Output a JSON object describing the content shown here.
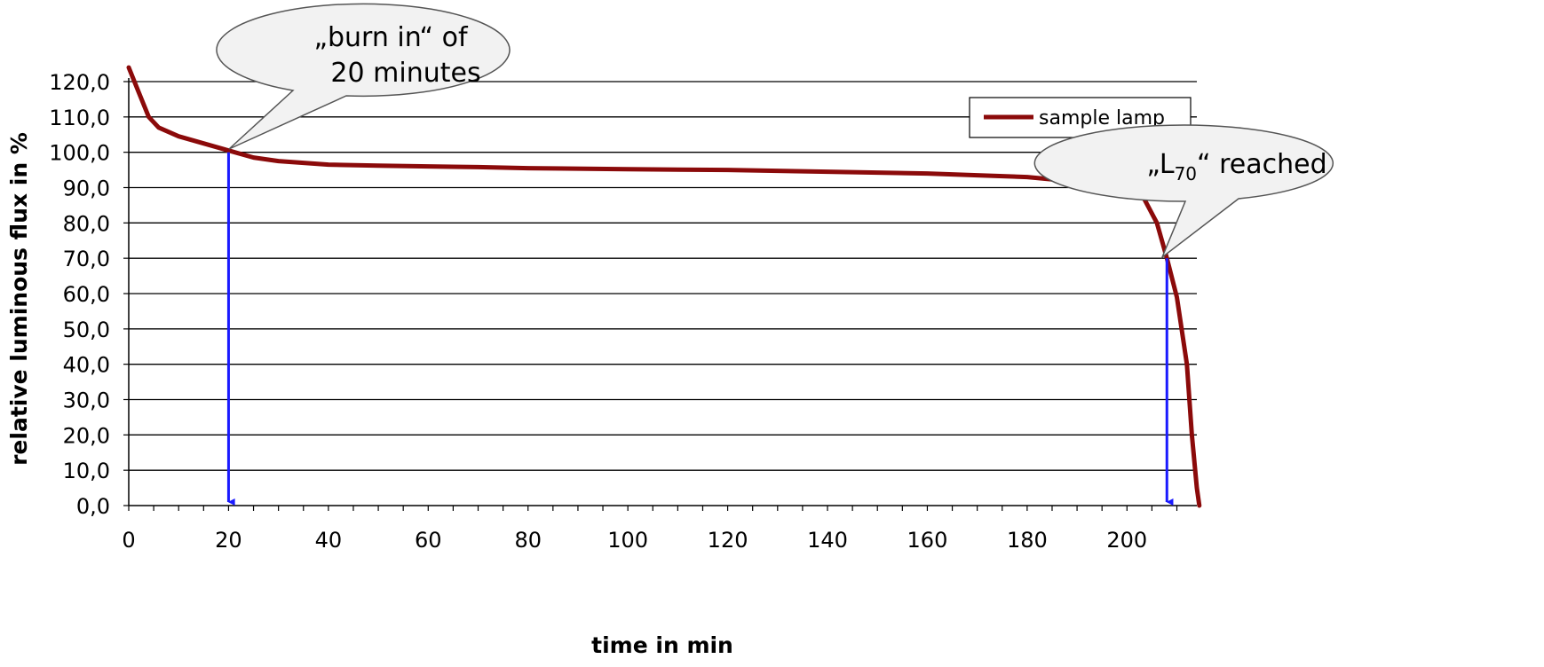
{
  "chart_data": {
    "type": "line",
    "title": "",
    "xlabel": "time in min",
    "ylabel": "relative luminous flux in %",
    "xlim": [
      0,
      214
    ],
    "ylim": [
      0,
      120
    ],
    "grid": "horizontal",
    "legend_position": "top-right",
    "x_ticks": [
      {
        "value": 0,
        "label": "0"
      },
      {
        "value": 20,
        "label": "20"
      },
      {
        "value": 40,
        "label": "40"
      },
      {
        "value": 60,
        "label": "60"
      },
      {
        "value": 80,
        "label": "80"
      },
      {
        "value": 100,
        "label": "100"
      },
      {
        "value": 120,
        "label": "120"
      },
      {
        "value": 140,
        "label": "140"
      },
      {
        "value": 160,
        "label": "160"
      },
      {
        "value": 180,
        "label": "180"
      },
      {
        "value": 200,
        "label": "200"
      }
    ],
    "y_ticks": [
      {
        "value": 0,
        "label": "0,0"
      },
      {
        "value": 10,
        "label": "10,0"
      },
      {
        "value": 20,
        "label": "20,0"
      },
      {
        "value": 30,
        "label": "30,0"
      },
      {
        "value": 40,
        "label": "40,0"
      },
      {
        "value": 50,
        "label": "50,0"
      },
      {
        "value": 60,
        "label": "60,0"
      },
      {
        "value": 70,
        "label": "70,0"
      },
      {
        "value": 80,
        "label": "80,0"
      },
      {
        "value": 90,
        "label": "90,0"
      },
      {
        "value": 100,
        "label": "100,0"
      },
      {
        "value": 110,
        "label": "110,0"
      },
      {
        "value": 120,
        "label": "120,0"
      }
    ],
    "series": [
      {
        "name": "sample lamp",
        "color": "#8b0a0a",
        "x": [
          0,
          2,
          4,
          6,
          10,
          15,
          20,
          25,
          30,
          35,
          40,
          50,
          60,
          70,
          80,
          100,
          120,
          140,
          160,
          170,
          180,
          185,
          190,
          195,
          200,
          203,
          206,
          208,
          210,
          212,
          213,
          214,
          214.5
        ],
        "y": [
          124,
          117,
          110,
          107,
          104.5,
          102.5,
          100.5,
          98.5,
          97.5,
          97,
          96.5,
          96.2,
          96,
          95.8,
          95.5,
          95.2,
          95,
          94.5,
          94,
          93.5,
          93,
          92.3,
          91.5,
          89.5,
          90.5,
          88,
          80,
          70,
          59,
          40,
          20,
          5,
          0
        ]
      }
    ],
    "annotations": [
      {
        "type": "arrow",
        "x": 20,
        "y_from": 100,
        "y_to": 0,
        "color": "#1a1aff"
      },
      {
        "type": "arrow",
        "x": 208,
        "y_from": 70,
        "y_to": 0,
        "color": "#1a1aff"
      }
    ]
  },
  "callouts": {
    "burn_in_line1": "„burn in“ of",
    "burn_in_line2": "20 minutes",
    "l70_prefix": "„L",
    "l70_subscript": "70",
    "l70_suffix": "“ reached"
  }
}
